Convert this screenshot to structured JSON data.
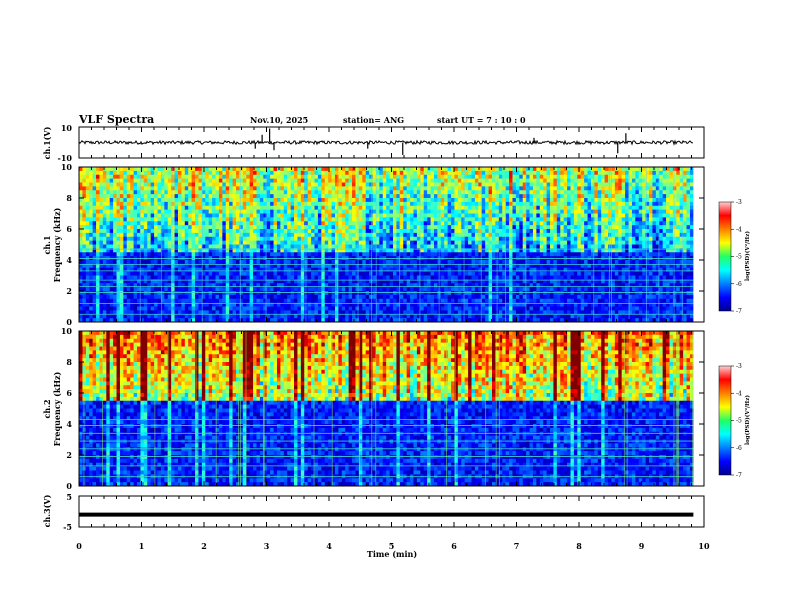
{
  "header": {
    "title": "VLF Spectra",
    "date": "Nov.10, 2025",
    "station": "station= ANG",
    "start_ut": "start  UT =   7 : 10 : 0"
  },
  "chart_data": [
    {
      "type": "line",
      "panel": "ch1_waveform",
      "ylabel": "ch.1(V)",
      "y_ticks": [
        "10",
        "-10"
      ],
      "ylim": [
        -10,
        10
      ],
      "xlim": [
        0,
        10
      ],
      "x_end": 9.83,
      "baseline": 0,
      "spikes": [
        {
          "x": 2.82,
          "y": -4
        },
        {
          "x": 2.93,
          "y": 5
        },
        {
          "x": 3.05,
          "y": 9
        },
        {
          "x": 3.12,
          "y": -5
        },
        {
          "x": 4.62,
          "y": -4
        },
        {
          "x": 5.18,
          "y": -8
        },
        {
          "x": 7.28,
          "y": 3
        },
        {
          "x": 8.62,
          "y": -7
        },
        {
          "x": 8.75,
          "y": 6
        }
      ]
    },
    {
      "type": "heatmap",
      "panel": "ch1_spectrogram",
      "ylabel": "Frequency (kHz)",
      "channel_label": "ch.1",
      "y_ticks": [
        "0",
        "2",
        "4",
        "6",
        "8",
        "10"
      ],
      "ylim": [
        0,
        10
      ],
      "xlim": [
        0,
        10
      ],
      "x_end": 9.83,
      "noise_floor_khz": 4.6,
      "carrier_lines_khz": [
        0.5,
        1.2,
        1.9,
        2.3,
        2.7,
        3.3,
        3.7,
        4.1,
        4.7
      ],
      "colorbar": {
        "label": "log(PSD)(V²/Hz)",
        "ticks": [
          "-3",
          "-4",
          "-5",
          "-6",
          "-7"
        ],
        "range": [
          -7,
          -3
        ]
      }
    },
    {
      "type": "heatmap",
      "panel": "ch2_spectrogram",
      "ylabel": "Frequency (kHz)",
      "channel_label": "ch.2",
      "y_ticks": [
        "0",
        "2",
        "4",
        "6",
        "8",
        "10"
      ],
      "ylim": [
        0,
        10
      ],
      "xlim": [
        0,
        10
      ],
      "x_end": 9.83,
      "noise_floor_khz": 5.4,
      "carrier_lines_khz": [
        0.6,
        1.3,
        1.9,
        2.4,
        2.9,
        3.4,
        3.9,
        4.3
      ],
      "colorbar": {
        "label": "log(PSD)(V²/Hz)",
        "ticks": [
          "-3",
          "-4",
          "-5",
          "-6",
          "-7"
        ],
        "range": [
          -7,
          -3
        ]
      }
    },
    {
      "type": "line",
      "panel": "ch3_waveform",
      "ylabel": "ch.3(V)",
      "y_ticks": [
        "5",
        "-5"
      ],
      "ylim": [
        -5,
        5
      ],
      "xlim": [
        0,
        10
      ],
      "x_end": 9.83,
      "baseline": -1.0
    }
  ],
  "x_axis": {
    "label": "Time  (min)",
    "ticks": [
      "0",
      "1",
      "2",
      "3",
      "4",
      "5",
      "6",
      "7",
      "8",
      "9",
      "10"
    ]
  }
}
